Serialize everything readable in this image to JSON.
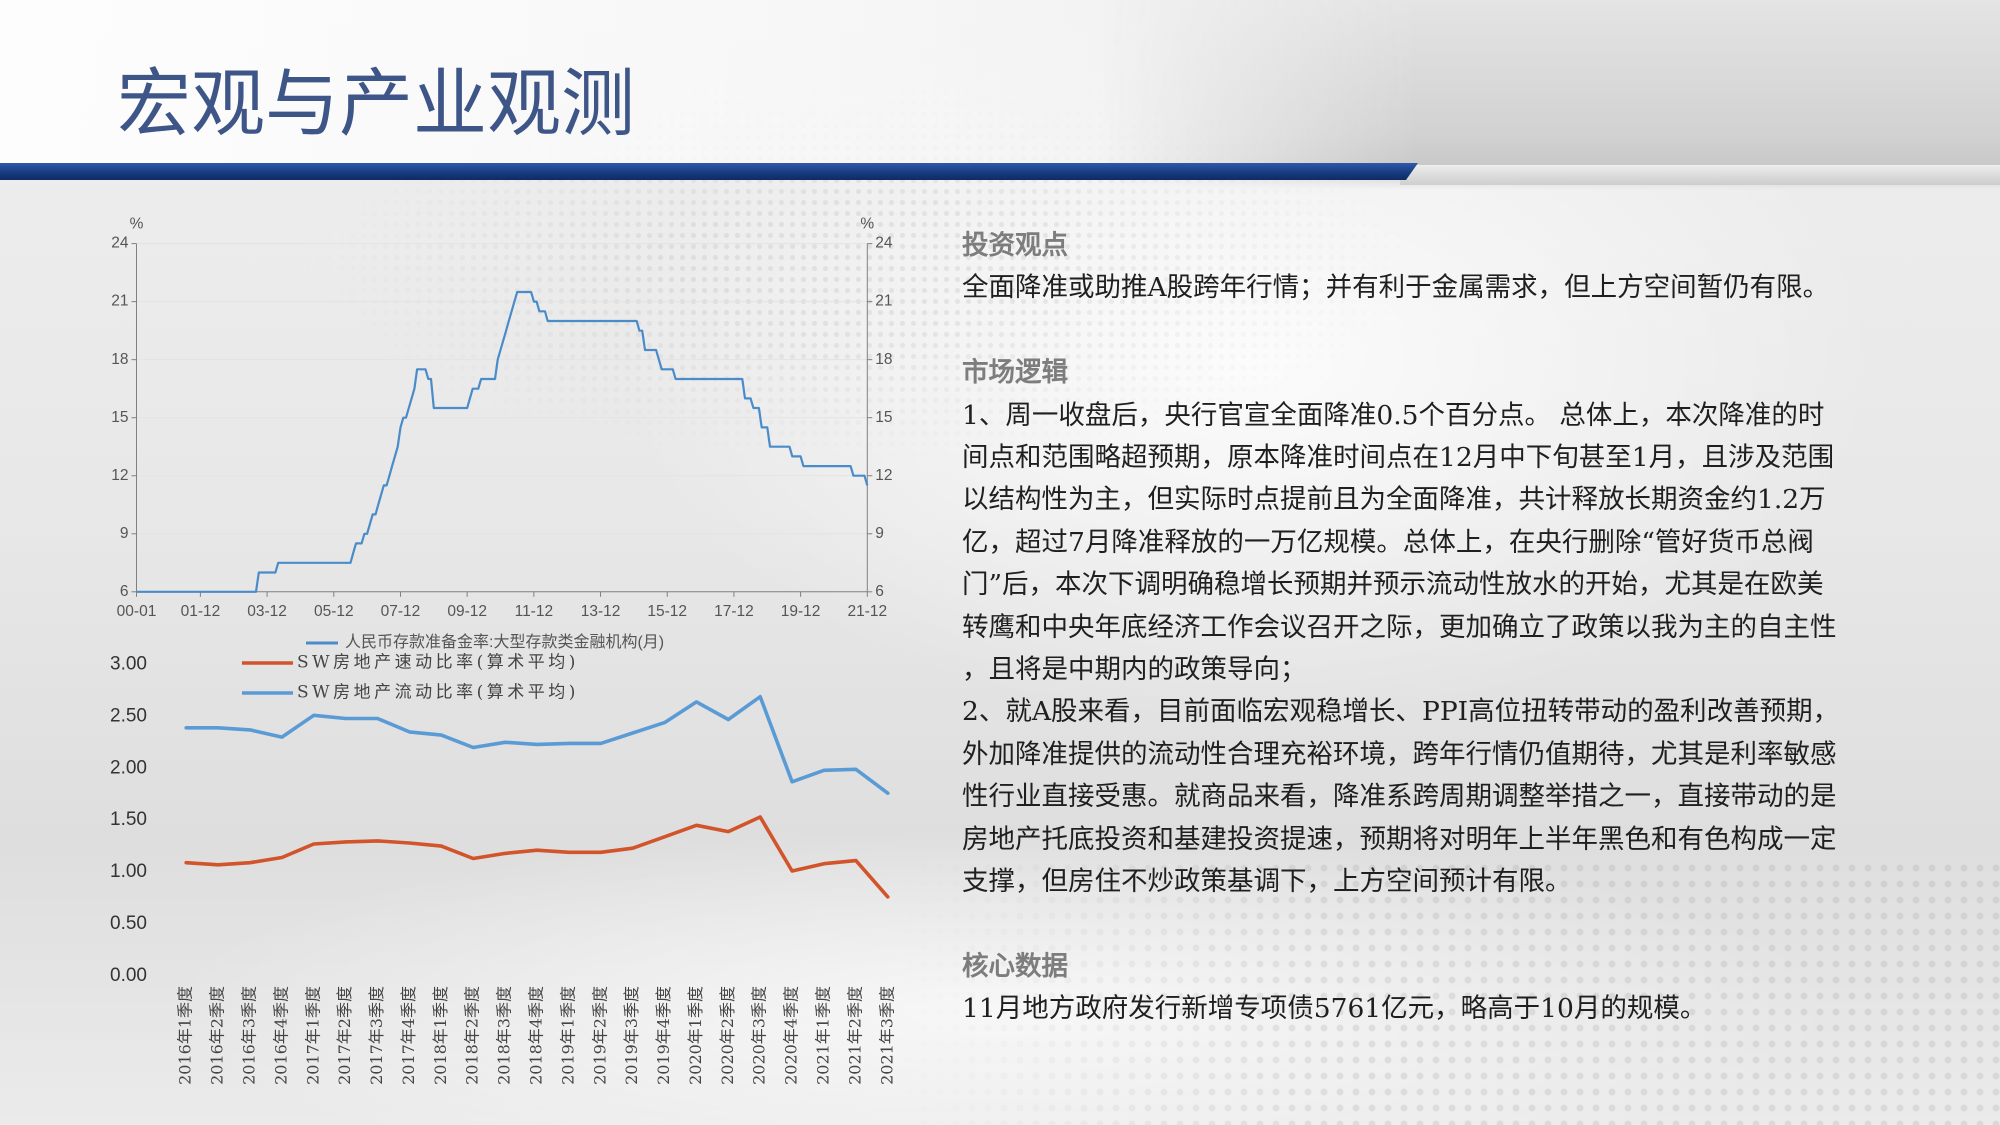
{
  "slide": {
    "title": "宏观与产业观测"
  },
  "sections": [
    {
      "heading": "投资观点",
      "lines": [
        "全面降准或助推A股跨年行情；并有利于金属需求，但上方空间暂仍有限。"
      ]
    },
    {
      "heading": "市场逻辑",
      "lines": [
        "1、周一收盘后，央行官宣全面降准0.5个百分点。 总体上，本次降准的时",
        "间点和范围略超预期，原本降准时间点在12月中下旬甚至1月，且涉及范围",
        "以结构性为主，但实际时点提前且为全面降准，共计释放长期资金约1.2万",
        "亿，超过7月降准释放的一万亿规模。总体上，在央行删除“管好货币总阀",
        "门”后，本次下调明确稳增长预期并预示流动性放水的开始，尤其是在欧美",
        "转鹰和中央年底经济工作会议召开之际，更加确立了政策以我为主的自主性",
        "，且将是中期内的政策导向；",
        "2、就A股来看，目前面临宏观稳增长、PPI高位扭转带动的盈利改善预期，",
        "外加降准提供的流动性合理充裕环境，跨年行情仍值期待，尤其是利率敏感",
        "性行业直接受惠。就商品来看，降准系跨周期调整举措之一，直接带动的是",
        "房地产托底投资和基建投资提速，预期将对明年上半年黑色和有色构成一定",
        "支撑，但房住不炒政策基调下，上方空间预计有限。"
      ]
    },
    {
      "heading": "核心数据",
      "lines": [
        "11月地方政府发行新增专项债5761亿元，略高于10月的规模。"
      ]
    }
  ],
  "chart_data": [
    {
      "type": "line",
      "y_unit": "%",
      "y2_unit": "%",
      "xlim": [
        "2000-01",
        "2021-12"
      ],
      "ylim": [
        6,
        24
      ],
      "y_ticks": [
        6,
        9,
        12,
        15,
        18,
        21,
        24
      ],
      "x_ticks": [
        {
          "date": "2000-01",
          "label": "00-01"
        },
        {
          "date": "2001-12",
          "label": "01-12"
        },
        {
          "date": "2003-12",
          "label": "03-12"
        },
        {
          "date": "2005-12",
          "label": "05-12"
        },
        {
          "date": "2007-12",
          "label": "07-12"
        },
        {
          "date": "2009-12",
          "label": "09-12"
        },
        {
          "date": "2011-12",
          "label": "11-12"
        },
        {
          "date": "2013-12",
          "label": "13-12"
        },
        {
          "date": "2015-12",
          "label": "15-12"
        },
        {
          "date": "2017-12",
          "label": "17-12"
        },
        {
          "date": "2019-12",
          "label": "19-12"
        },
        {
          "date": "2021-12",
          "label": "21-12"
        }
      ],
      "grid": true,
      "legend": "bottom",
      "series": [
        {
          "name": "人民币存款准备金率:大型存款类金融机构(月)",
          "color": "#4a8bc9",
          "x": [
            "2000-01",
            "2003-09",
            "2004-04",
            "2006-07",
            "2006-08",
            "2006-11",
            "2007-01",
            "2007-02",
            "2007-04",
            "2007-05",
            "2007-06",
            "2007-08",
            "2007-09",
            "2007-10",
            "2007-11",
            "2007-12",
            "2008-01",
            "2008-03",
            "2008-04",
            "2008-05",
            "2008-06",
            "2008-10",
            "2008-12",
            "2010-01",
            "2010-02",
            "2010-05",
            "2010-11",
            "2010-12",
            "2011-01",
            "2011-02",
            "2011-03",
            "2011-04",
            "2011-05",
            "2011-06",
            "2011-12",
            "2012-02",
            "2012-05",
            "2015-02",
            "2015-04",
            "2015-09",
            "2015-10",
            "2016-03",
            "2018-04",
            "2018-07",
            "2018-10",
            "2019-01",
            "2019-09",
            "2020-01",
            "2021-07",
            "2021-12"
          ],
          "values": [
            6,
            7,
            7.5,
            8,
            8.5,
            9,
            9.5,
            10,
            10.5,
            11,
            11.5,
            12,
            12.5,
            13,
            13.5,
            14.5,
            15,
            15.5,
            16,
            16.5,
            17.5,
            17,
            15.5,
            16,
            16.5,
            17,
            18,
            18.5,
            19,
            19.5,
            20,
            20.5,
            21,
            21.5,
            21,
            20.5,
            20,
            19.5,
            18.5,
            18,
            17.5,
            17,
            16,
            15.5,
            14.5,
            13.5,
            13,
            12.5,
            12,
            11.5
          ]
        }
      ]
    },
    {
      "type": "line",
      "categories": [
        "2016年1季度",
        "2016年2季度",
        "2016年3季度",
        "2016年4季度",
        "2017年1季度",
        "2017年2季度",
        "2017年3季度",
        "2017年4季度",
        "2018年1季度",
        "2018年2季度",
        "2018年3季度",
        "2018年4季度",
        "2019年1季度",
        "2019年2季度",
        "2019年3季度",
        "2019年4季度",
        "2020年1季度",
        "2020年2季度",
        "2020年3季度",
        "2020年4季度",
        "2021年1季度",
        "2021年2季度",
        "2021年3季度"
      ],
      "ylim": [
        0,
        3
      ],
      "y_ticks": [
        0,
        0.5,
        1,
        1.5,
        2,
        2.5,
        3
      ],
      "y_tick_labels": [
        "0.00",
        "0.50",
        "1.00",
        "1.50",
        "2.00",
        "2.50",
        "3.00"
      ],
      "grid": false,
      "legend": "top-left",
      "series": [
        {
          "name": "SW房地产速动比率(算术平均)",
          "color": "#d1542a",
          "values": [
            1.09,
            1.07,
            1.09,
            1.14,
            1.27,
            1.29,
            1.3,
            1.28,
            1.25,
            1.13,
            1.18,
            1.21,
            1.19,
            1.19,
            1.23,
            1.34,
            1.45,
            1.39,
            1.53,
            1.01,
            1.08,
            1.11,
            0.76
          ]
        },
        {
          "name": "SW房地产流动比率(算术平均)",
          "color": "#5b9bd5",
          "values": [
            2.39,
            2.39,
            2.37,
            2.3,
            2.51,
            2.48,
            2.48,
            2.35,
            2.32,
            2.2,
            2.25,
            2.23,
            2.24,
            2.24,
            2.34,
            2.44,
            2.64,
            2.47,
            2.69,
            1.87,
            1.98,
            1.99,
            1.76
          ]
        }
      ]
    }
  ]
}
